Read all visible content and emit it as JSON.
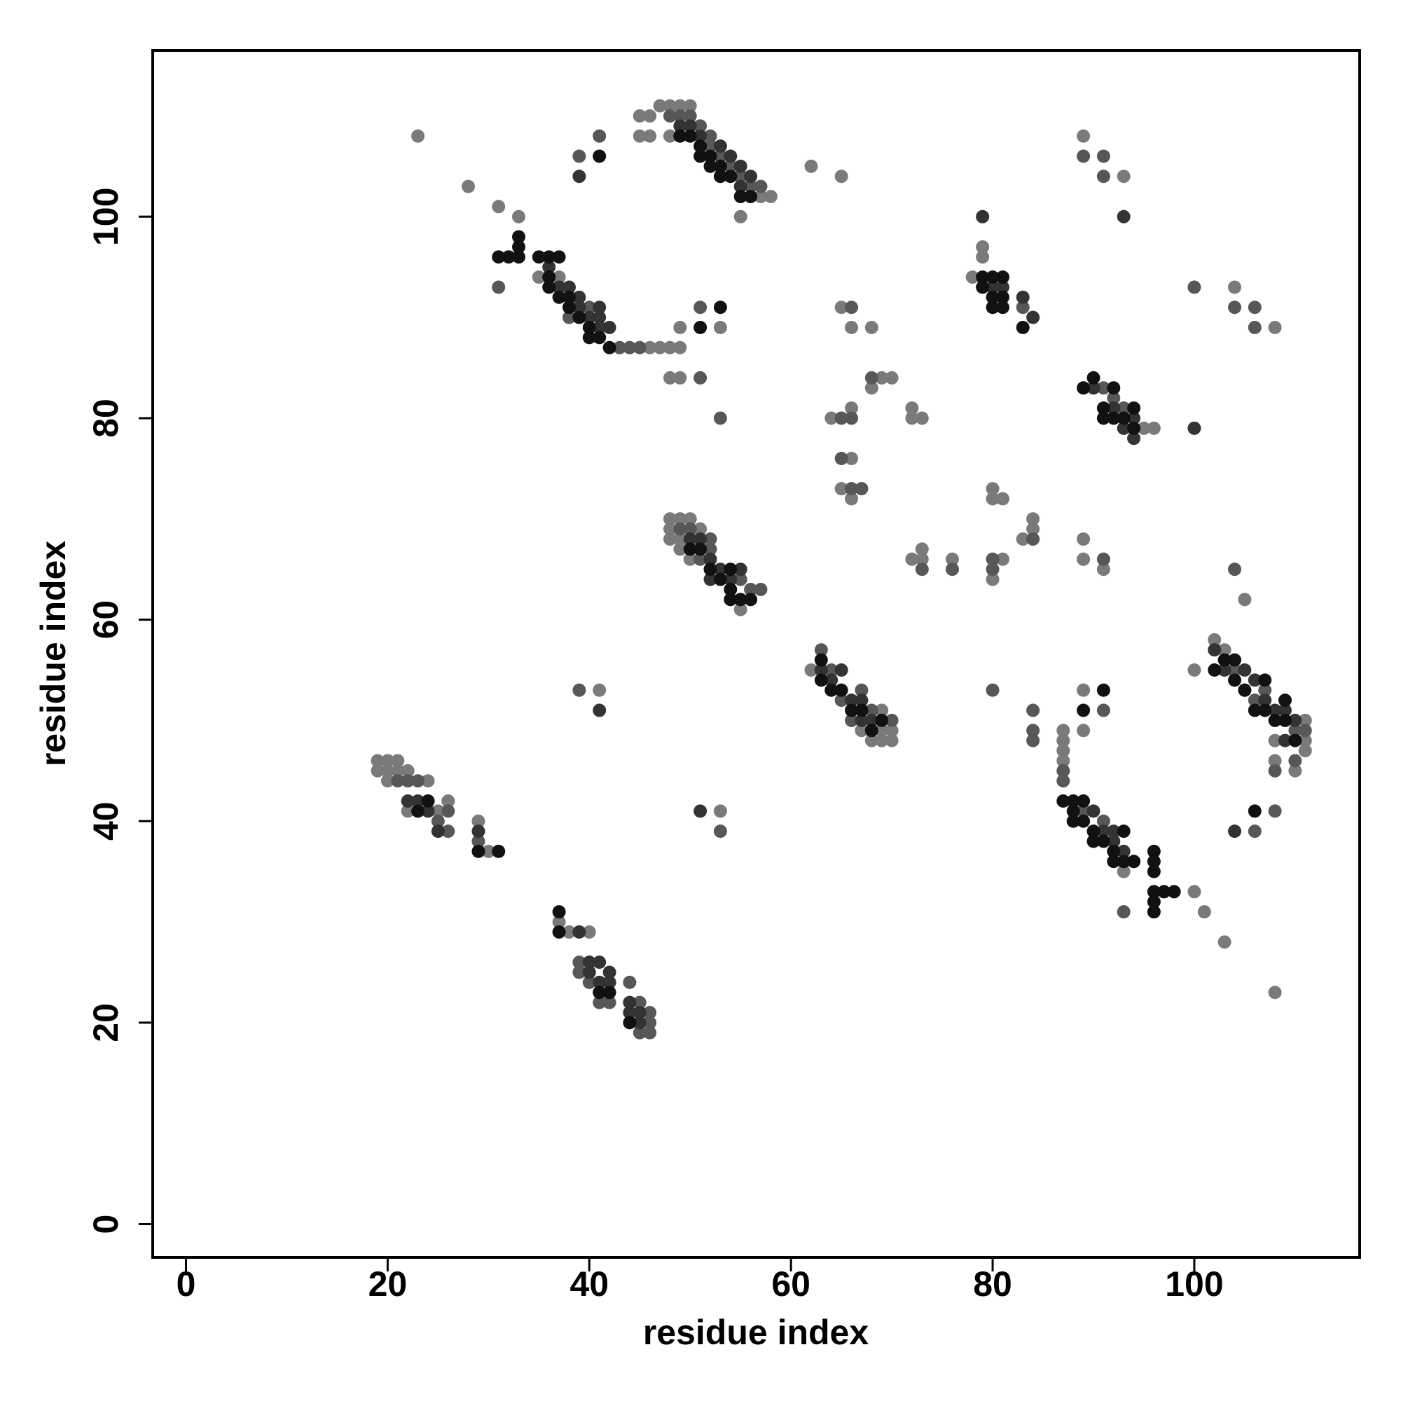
{
  "chart_data": {
    "type": "scatter",
    "xlabel": "residue index",
    "ylabel": "residue index",
    "xlim": [
      -3.3,
      116.4
    ],
    "ylim": [
      -3.3,
      116.5
    ],
    "xticks": [
      0,
      20,
      40,
      60,
      80,
      100
    ],
    "yticks": [
      0,
      20,
      40,
      60,
      80,
      100
    ],
    "series": [
      {
        "color": "#7a7a7a",
        "x": [
          45,
          46,
          47,
          48,
          49,
          50,
          48,
          45,
          46,
          55,
          58,
          57,
          23,
          28,
          62,
          65,
          31,
          33,
          35,
          37,
          46,
          47,
          48,
          49,
          48,
          49,
          49,
          53,
          79,
          79,
          78,
          89,
          93,
          104,
          108,
          95,
          96,
          65,
          66,
          68,
          69,
          70,
          68,
          64,
          66,
          72,
          72,
          73,
          66,
          65,
          66,
          72,
          73,
          73,
          76,
          80,
          80,
          81,
          80,
          81,
          83,
          84,
          84,
          89,
          89,
          91,
          105,
          48,
          49,
          50,
          48,
          48,
          49,
          49,
          50,
          51,
          55,
          62,
          67,
          68,
          69,
          70,
          69,
          70,
          69,
          102,
          103,
          100,
          108,
          108,
          110,
          111,
          111,
          111,
          87,
          87,
          87,
          87,
          89,
          89,
          93,
          101,
          103,
          108,
          100,
          19,
          20,
          21,
          19,
          20,
          21,
          20,
          22,
          24,
          26,
          29,
          30,
          22,
          25,
          37,
          38,
          40,
          41,
          53
        ],
        "y": [
          110,
          110,
          111,
          111,
          111,
          111,
          108,
          108,
          108,
          100,
          102,
          102,
          108,
          103,
          105,
          104,
          101,
          100,
          94,
          94,
          87,
          87,
          87,
          87,
          84,
          84,
          89,
          89,
          97,
          96,
          94,
          108,
          104,
          93,
          89,
          79,
          79,
          91,
          89,
          89,
          84,
          84,
          83,
          80,
          81,
          81,
          80,
          80,
          76,
          73,
          72,
          66,
          67,
          66,
          66,
          73,
          72,
          72,
          64,
          66,
          68,
          70,
          69,
          68,
          66,
          65,
          62,
          70,
          70,
          70,
          69,
          68,
          68,
          67,
          66,
          69,
          61,
          55,
          49,
          48,
          48,
          48,
          49,
          49,
          51,
          58,
          57,
          55,
          48,
          46,
          45,
          48,
          47,
          50,
          49,
          48,
          47,
          46,
          49,
          53,
          35,
          31,
          28,
          23,
          33,
          46,
          46,
          46,
          45,
          45,
          45,
          44,
          45,
          44,
          42,
          40,
          37,
          41,
          41,
          30,
          29,
          29,
          53,
          41
        ]
      },
      {
        "color": "#575757",
        "x": [
          50,
          51,
          52,
          48,
          49,
          52,
          53,
          54,
          55,
          56,
          57,
          56,
          39,
          41,
          31,
          38,
          40,
          43,
          44,
          45,
          51,
          51,
          53,
          83,
          89,
          91,
          91,
          100,
          104,
          106,
          106,
          91,
          93,
          92,
          66,
          68,
          65,
          66,
          65,
          66,
          67,
          73,
          76,
          80,
          80,
          84,
          91,
          104,
          49,
          50,
          51,
          52,
          52,
          57,
          56,
          55,
          63,
          64,
          65,
          66,
          68,
          67,
          70,
          104,
          105,
          106,
          107,
          108,
          110,
          110,
          111,
          106,
          108,
          87,
          87,
          89,
          91,
          93,
          91,
          84,
          84,
          84,
          80,
          21,
          22,
          23,
          24,
          25,
          26,
          26,
          29,
          39,
          39,
          40,
          41,
          42,
          44,
          45,
          45,
          46,
          46,
          46,
          39,
          53
        ],
        "y": [
          110,
          109,
          108,
          110,
          110,
          107,
          106,
          105,
          104,
          103,
          103,
          102,
          106,
          108,
          93,
          90,
          91,
          87,
          87,
          87,
          91,
          84,
          80,
          91,
          106,
          106,
          104,
          93,
          91,
          91,
          89,
          83,
          81,
          82,
          91,
          84,
          80,
          80,
          76,
          73,
          73,
          65,
          65,
          66,
          65,
          68,
          66,
          65,
          69,
          69,
          66,
          67,
          68,
          63,
          63,
          64,
          57,
          55,
          52,
          50,
          51,
          53,
          50,
          55,
          53,
          52,
          53,
          45,
          46,
          49,
          49,
          39,
          41,
          45,
          44,
          41,
          40,
          31,
          51,
          51,
          49,
          48,
          53,
          44,
          44,
          44,
          42,
          40,
          41,
          39,
          38,
          26,
          25,
          24,
          22,
          22,
          24,
          22,
          19,
          19,
          20,
          21,
          53,
          39
        ]
      },
      {
        "color": "#333333",
        "x": [
          49,
          50,
          51,
          53,
          54,
          55,
          56,
          55,
          39,
          36,
          37,
          38,
          39,
          39,
          40,
          41,
          41,
          42,
          41,
          79,
          80,
          81,
          83,
          84,
          93,
          90,
          92,
          93,
          94,
          94,
          100,
          50,
          51,
          52,
          53,
          54,
          55,
          52,
          63,
          64,
          65,
          66,
          67,
          68,
          67,
          102,
          103,
          105,
          106,
          107,
          108,
          109,
          110,
          109,
          104,
          90,
          91,
          92,
          93,
          94,
          92,
          41,
          51,
          22,
          23,
          24,
          25,
          29,
          39,
          40,
          41,
          40,
          41,
          42,
          44,
          44,
          45,
          45,
          42
        ],
        "y": [
          109,
          109,
          108,
          107,
          106,
          105,
          104,
          103,
          104,
          95,
          93,
          93,
          92,
          91,
          90,
          91,
          90,
          89,
          89,
          100,
          93,
          93,
          92,
          90,
          100,
          83,
          81,
          79,
          80,
          78,
          79,
          68,
          68,
          66,
          65,
          64,
          65,
          64,
          55,
          54,
          55,
          52,
          52,
          50,
          50,
          57,
          55,
          55,
          54,
          52,
          51,
          51,
          50,
          48,
          39,
          41,
          39,
          38,
          37,
          36,
          39,
          51,
          41,
          42,
          42,
          41,
          39,
          39,
          29,
          26,
          26,
          25,
          24,
          24,
          22,
          21,
          21,
          20,
          25
        ]
      },
      {
        "color": "#111111",
        "x": [
          49,
          50,
          51,
          51,
          52,
          53,
          53,
          54,
          55,
          56,
          52,
          41,
          31,
          32,
          33,
          33,
          33,
          35,
          36,
          37,
          36,
          36,
          37,
          38,
          38,
          39,
          40,
          40,
          41,
          42,
          53,
          51,
          79,
          80,
          81,
          79,
          80,
          81,
          80,
          81,
          83,
          89,
          90,
          92,
          91,
          91,
          92,
          93,
          94,
          94,
          50,
          51,
          52,
          53,
          54,
          54,
          55,
          56,
          54,
          63,
          63,
          64,
          65,
          66,
          67,
          68,
          69,
          102,
          103,
          104,
          104,
          105,
          106,
          107,
          107,
          108,
          109,
          110,
          109,
          106,
          87,
          88,
          88,
          88,
          89,
          89,
          90,
          90,
          91,
          92,
          92,
          93,
          93,
          94,
          96,
          96,
          96,
          96,
          97,
          98,
          96,
          96,
          89,
          91,
          24,
          29,
          31,
          23,
          37,
          37,
          41,
          42,
          44
        ],
        "y": [
          108,
          108,
          107,
          106,
          106,
          105,
          104,
          104,
          102,
          102,
          105,
          106,
          96,
          96,
          96,
          97,
          98,
          96,
          96,
          96,
          94,
          93,
          92,
          92,
          91,
          90,
          89,
          88,
          88,
          87,
          91,
          89,
          94,
          94,
          94,
          93,
          92,
          92,
          91,
          91,
          89,
          83,
          84,
          83,
          81,
          80,
          80,
          80,
          79,
          81,
          67,
          67,
          65,
          64,
          63,
          62,
          62,
          62,
          65,
          56,
          54,
          53,
          53,
          51,
          51,
          49,
          50,
          55,
          56,
          56,
          54,
          53,
          51,
          54,
          51,
          50,
          52,
          48,
          50,
          41,
          42,
          42,
          41,
          40,
          42,
          40,
          39,
          38,
          38,
          37,
          36,
          39,
          36,
          36,
          37,
          36,
          35,
          33,
          33,
          33,
          32,
          31,
          51,
          53,
          42,
          37,
          37,
          41,
          31,
          29,
          23,
          23,
          20
        ]
      }
    ]
  }
}
